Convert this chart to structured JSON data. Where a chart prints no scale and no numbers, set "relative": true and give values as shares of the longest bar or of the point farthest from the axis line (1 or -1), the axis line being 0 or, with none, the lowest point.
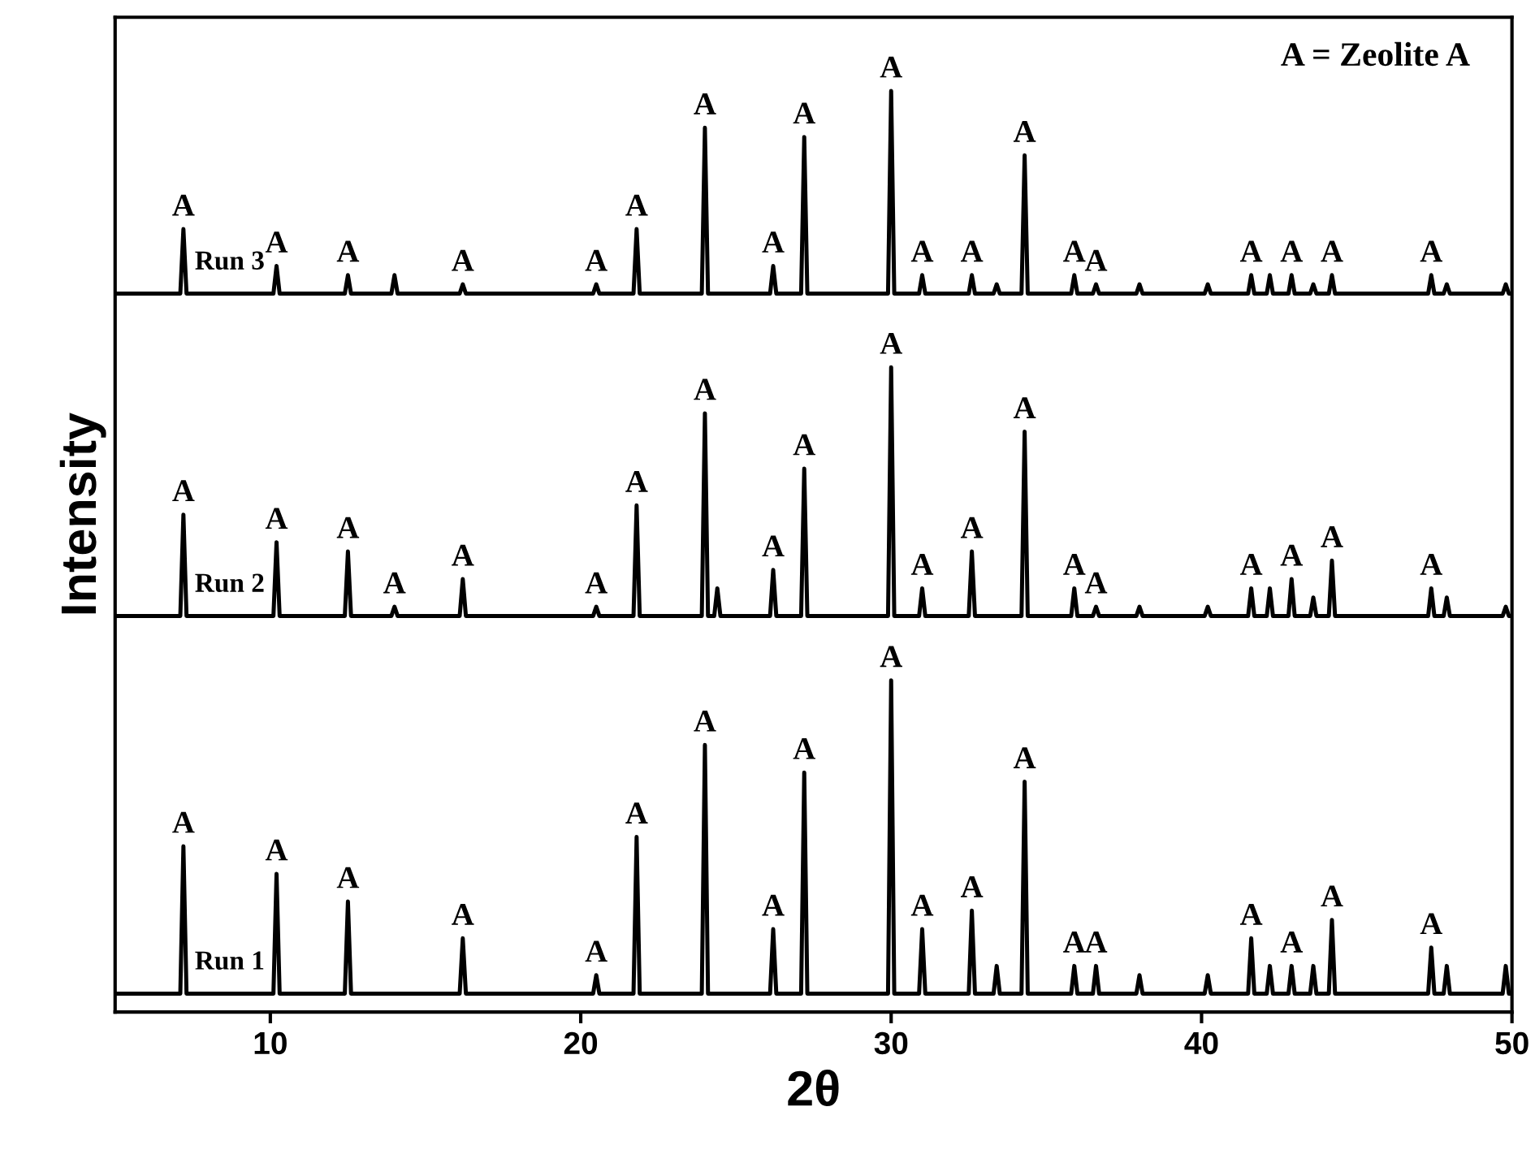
{
  "chart_data": {
    "type": "line",
    "relative": true,
    "xlabel": "2θ",
    "ylabel": "Intensity",
    "xlim": [
      5,
      50
    ],
    "xticks": [
      10,
      20,
      30,
      40,
      50
    ],
    "grid": false,
    "legend": false,
    "marker": "none",
    "line_style": "solid",
    "tick_labels": "x",
    "x": [
      5,
      7.1,
      7.2,
      7.3,
      10.1,
      10.2,
      10.3,
      12.4,
      12.5,
      12.6,
      13.9,
      14.0,
      14.1,
      16.1,
      16.2,
      16.3,
      20.4,
      20.5,
      20.6,
      21.7,
      21.8,
      21.9,
      23.9,
      24.0,
      24.1,
      24.3,
      24.4,
      24.5,
      26.1,
      26.2,
      26.3,
      27.1,
      27.2,
      27.3,
      29.9,
      30.0,
      30.1,
      30.9,
      31.0,
      31.1,
      32.5,
      32.6,
      32.7,
      33.3,
      33.4,
      33.5,
      34.2,
      34.3,
      34.4,
      35.8,
      35.9,
      36.0,
      36.5,
      36.6,
      36.7,
      37.9,
      38.0,
      38.1,
      40.1,
      40.2,
      40.3,
      41.5,
      41.6,
      41.7,
      42.1,
      42.2,
      42.3,
      42.8,
      42.9,
      43.0,
      43.5,
      43.6,
      43.7,
      44.1,
      44.2,
      44.3,
      47.3,
      47.4,
      47.5,
      47.8,
      47.9,
      48.0,
      49.7,
      49.8,
      49.9,
      50
    ],
    "series": [
      {
        "name": "Run 1",
        "color": "#000000",
        "values": [
          0.02,
          0.02,
          0.18,
          0.02,
          0.02,
          0.15,
          0.02,
          0.02,
          0.12,
          0.02,
          0.02,
          0.02,
          0.02,
          0.02,
          0.08,
          0.02,
          0.02,
          0.04,
          0.02,
          0.02,
          0.19,
          0.02,
          0.02,
          0.29,
          0.02,
          0.02,
          0.02,
          0.02,
          0.02,
          0.09,
          0.02,
          0.02,
          0.26,
          0.02,
          0.02,
          0.36,
          0.02,
          0.02,
          0.09,
          0.02,
          0.02,
          0.11,
          0.02,
          0.02,
          0.05,
          0.02,
          0.02,
          0.25,
          0.02,
          0.02,
          0.05,
          0.02,
          0.02,
          0.05,
          0.02,
          0.02,
          0.04,
          0.02,
          0.02,
          0.04,
          0.02,
          0.02,
          0.08,
          0.02,
          0.02,
          0.05,
          0.02,
          0.02,
          0.05,
          0.02,
          0.02,
          0.05,
          0.02,
          0.02,
          0.1,
          0.02,
          0.02,
          0.07,
          0.02,
          0.02,
          0.05,
          0.02,
          0.02,
          0.05,
          0.02,
          0.02
        ]
      },
      {
        "name": "Run 2",
        "color": "#000000",
        "values": [
          0.43,
          0.43,
          0.54,
          0.43,
          0.43,
          0.51,
          0.43,
          0.43,
          0.5,
          0.43,
          0.43,
          0.44,
          0.43,
          0.43,
          0.47,
          0.43,
          0.43,
          0.44,
          0.43,
          0.43,
          0.55,
          0.43,
          0.43,
          0.65,
          0.43,
          0.43,
          0.46,
          0.43,
          0.43,
          0.48,
          0.43,
          0.43,
          0.59,
          0.43,
          0.43,
          0.7,
          0.43,
          0.43,
          0.46,
          0.43,
          0.43,
          0.5,
          0.43,
          0.43,
          0.43,
          0.43,
          0.43,
          0.63,
          0.43,
          0.43,
          0.46,
          0.43,
          0.43,
          0.44,
          0.43,
          0.43,
          0.44,
          0.43,
          0.43,
          0.44,
          0.43,
          0.43,
          0.46,
          0.43,
          0.43,
          0.46,
          0.43,
          0.43,
          0.47,
          0.43,
          0.43,
          0.45,
          0.43,
          0.43,
          0.49,
          0.43,
          0.43,
          0.46,
          0.43,
          0.43,
          0.45,
          0.43,
          0.43,
          0.44,
          0.43,
          0.43
        ]
      },
      {
        "name": "Run 3",
        "color": "#000000",
        "values": [
          0.78,
          0.78,
          0.85,
          0.78,
          0.78,
          0.81,
          0.78,
          0.78,
          0.8,
          0.78,
          0.78,
          0.8,
          0.78,
          0.78,
          0.79,
          0.78,
          0.78,
          0.79,
          0.78,
          0.78,
          0.85,
          0.78,
          0.78,
          0.96,
          0.78,
          0.78,
          0.78,
          0.78,
          0.78,
          0.81,
          0.78,
          0.78,
          0.95,
          0.78,
          0.78,
          1,
          0.78,
          0.78,
          0.8,
          0.78,
          0.78,
          0.8,
          0.78,
          0.78,
          0.79,
          0.78,
          0.78,
          0.93,
          0.78,
          0.78,
          0.8,
          0.78,
          0.78,
          0.79,
          0.78,
          0.78,
          0.79,
          0.78,
          0.78,
          0.79,
          0.78,
          0.78,
          0.8,
          0.78,
          0.78,
          0.8,
          0.78,
          0.78,
          0.8,
          0.78,
          0.78,
          0.79,
          0.78,
          0.78,
          0.8,
          0.78,
          0.78,
          0.8,
          0.78,
          0.78,
          0.79,
          0.78,
          0.78,
          0.79,
          0.78,
          0.78
        ]
      }
    ],
    "annotations": [
      "A = Zeolite A",
      {
        "text": "A",
        "x": 7.2,
        "y": 0.18
      },
      {
        "text": "A",
        "x": 10.2,
        "y": 0.15
      },
      {
        "text": "A",
        "x": 12.5,
        "y": 0.12
      },
      {
        "text": "A",
        "x": 16.2,
        "y": 0.08
      },
      {
        "text": "A",
        "x": 20.5,
        "y": 0.04
      },
      {
        "text": "A",
        "x": 21.8,
        "y": 0.19
      },
      {
        "text": "A",
        "x": 24.0,
        "y": 0.29
      },
      {
        "text": "A",
        "x": 26.2,
        "y": 0.09
      },
      {
        "text": "A",
        "x": 27.2,
        "y": 0.26
      },
      {
        "text": "A",
        "x": 30.0,
        "y": 0.36
      },
      {
        "text": "A",
        "x": 31.0,
        "y": 0.09
      },
      {
        "text": "A",
        "x": 32.6,
        "y": 0.11
      },
      {
        "text": "A",
        "x": 34.3,
        "y": 0.25
      },
      {
        "text": "A",
        "x": 35.9,
        "y": 0.05
      },
      {
        "text": "A",
        "x": 36.6,
        "y": 0.05
      },
      {
        "text": "A",
        "x": 41.6,
        "y": 0.08
      },
      {
        "text": "A",
        "x": 42.9,
        "y": 0.05
      },
      {
        "text": "A",
        "x": 44.2,
        "y": 0.1
      },
      {
        "text": "A",
        "x": 47.4,
        "y": 0.07
      },
      {
        "text": "A",
        "x": 7.2,
        "y": 0.54
      },
      {
        "text": "A",
        "x": 10.2,
        "y": 0.51
      },
      {
        "text": "A",
        "x": 12.5,
        "y": 0.5
      },
      {
        "text": "A",
        "x": 14.0,
        "y": 0.44
      },
      {
        "text": "A",
        "x": 16.2,
        "y": 0.47
      },
      {
        "text": "A",
        "x": 20.5,
        "y": 0.44
      },
      {
        "text": "A",
        "x": 21.8,
        "y": 0.55
      },
      {
        "text": "A",
        "x": 24.0,
        "y": 0.65
      },
      {
        "text": "A",
        "x": 26.2,
        "y": 0.48
      },
      {
        "text": "A",
        "x": 27.2,
        "y": 0.59
      },
      {
        "text": "A",
        "x": 30.0,
        "y": 0.7
      },
      {
        "text": "A",
        "x": 31.0,
        "y": 0.46
      },
      {
        "text": "A",
        "x": 32.6,
        "y": 0.5
      },
      {
        "text": "A",
        "x": 34.3,
        "y": 0.63
      },
      {
        "text": "A",
        "x": 35.9,
        "y": 0.46
      },
      {
        "text": "A",
        "x": 36.6,
        "y": 0.44
      },
      {
        "text": "A",
        "x": 41.6,
        "y": 0.46
      },
      {
        "text": "A",
        "x": 42.9,
        "y": 0.47
      },
      {
        "text": "A",
        "x": 44.2,
        "y": 0.49
      },
      {
        "text": "A",
        "x": 47.4,
        "y": 0.46
      },
      {
        "text": "A",
        "x": 7.2,
        "y": 0.85
      },
      {
        "text": "A",
        "x": 10.2,
        "y": 0.81
      },
      {
        "text": "A",
        "x": 12.5,
        "y": 0.8
      },
      {
        "text": "A",
        "x": 16.2,
        "y": 0.79
      },
      {
        "text": "A",
        "x": 20.5,
        "y": 0.79
      },
      {
        "text": "A",
        "x": 21.8,
        "y": 0.85
      },
      {
        "text": "A",
        "x": 24.0,
        "y": 0.96
      },
      {
        "text": "A",
        "x": 26.2,
        "y": 0.81
      },
      {
        "text": "A",
        "x": 27.2,
        "y": 0.95
      },
      {
        "text": "A",
        "x": 30.0,
        "y": 1
      },
      {
        "text": "A",
        "x": 31.0,
        "y": 0.8
      },
      {
        "text": "A",
        "x": 32.6,
        "y": 0.8
      },
      {
        "text": "A",
        "x": 34.3,
        "y": 0.93
      },
      {
        "text": "A",
        "x": 35.9,
        "y": 0.8
      },
      {
        "text": "A",
        "x": 36.6,
        "y": 0.79
      },
      {
        "text": "A",
        "x": 41.6,
        "y": 0.8
      },
      {
        "text": "A",
        "x": 42.9,
        "y": 0.8
      },
      {
        "text": "A",
        "x": 44.2,
        "y": 0.8
      },
      {
        "text": "A",
        "x": 47.4,
        "y": 0.8
      }
    ]
  }
}
